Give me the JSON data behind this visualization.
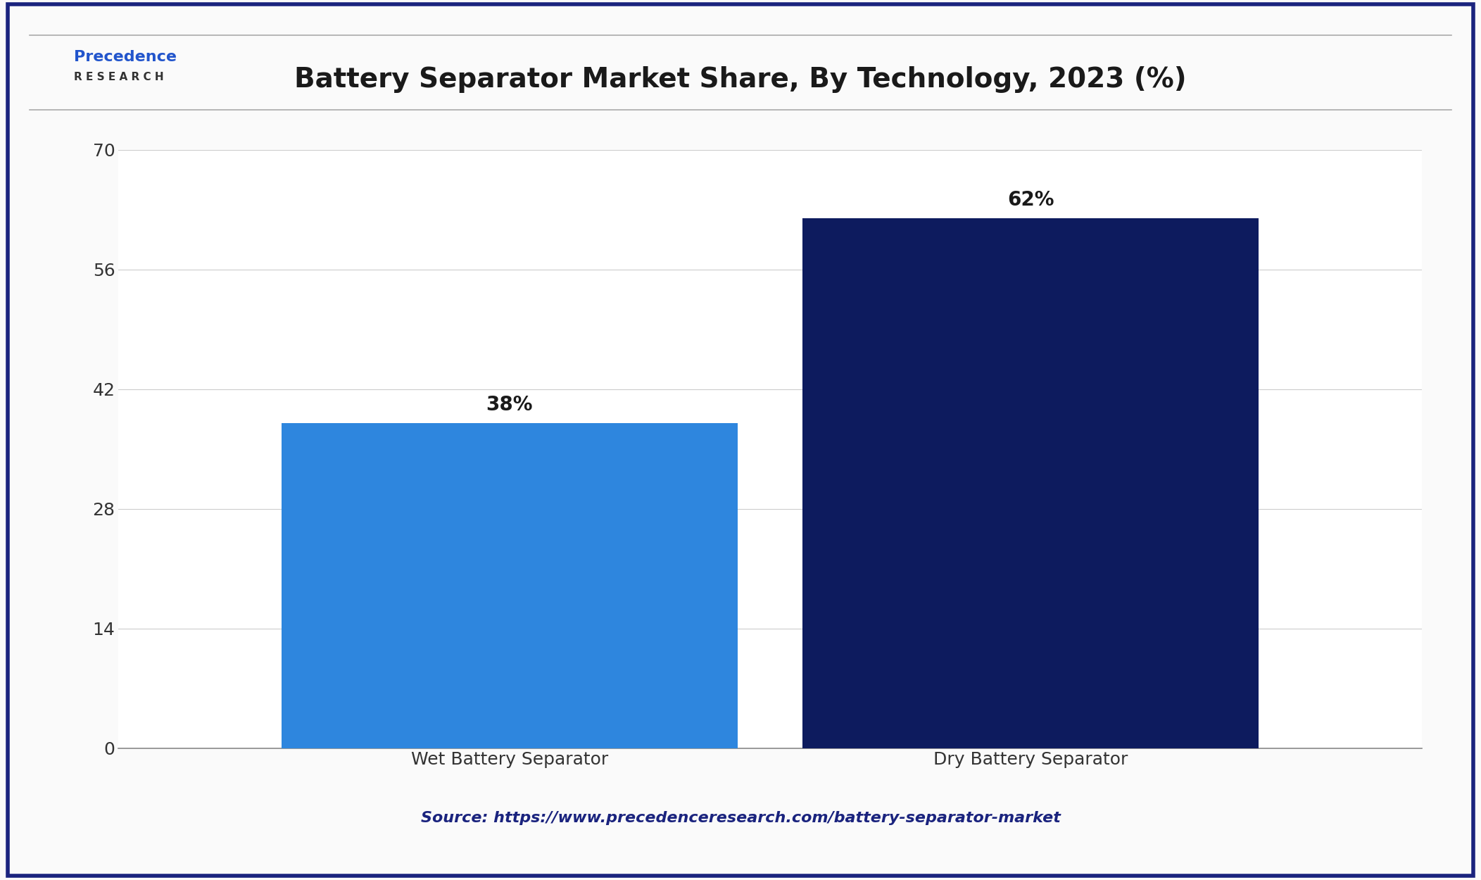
{
  "title": "Battery Separator Market Share, By Technology, 2023 (%)",
  "categories": [
    "Wet Battery Separator",
    "Dry Battery Separator"
  ],
  "values": [
    38,
    62
  ],
  "labels": [
    "38%",
    "62%"
  ],
  "bar_colors": [
    "#2E86DE",
    "#0D1B5E"
  ],
  "background_color": "#FAFAFA",
  "plot_bg_color": "#FFFFFF",
  "ylim": [
    0,
    70
  ],
  "yticks": [
    0,
    14,
    28,
    42,
    56,
    70
  ],
  "grid_color": "#CCCCCC",
  "bar_width": 0.35,
  "title_fontsize": 28,
  "tick_fontsize": 18,
  "label_fontsize": 20,
  "source_text": "Source: https://www.precedenceresearch.com/battery-separator-market",
  "source_fontsize": 16,
  "source_color": "#1A237E",
  "border_color": "#1A237E",
  "title_color": "#1A1A1A"
}
